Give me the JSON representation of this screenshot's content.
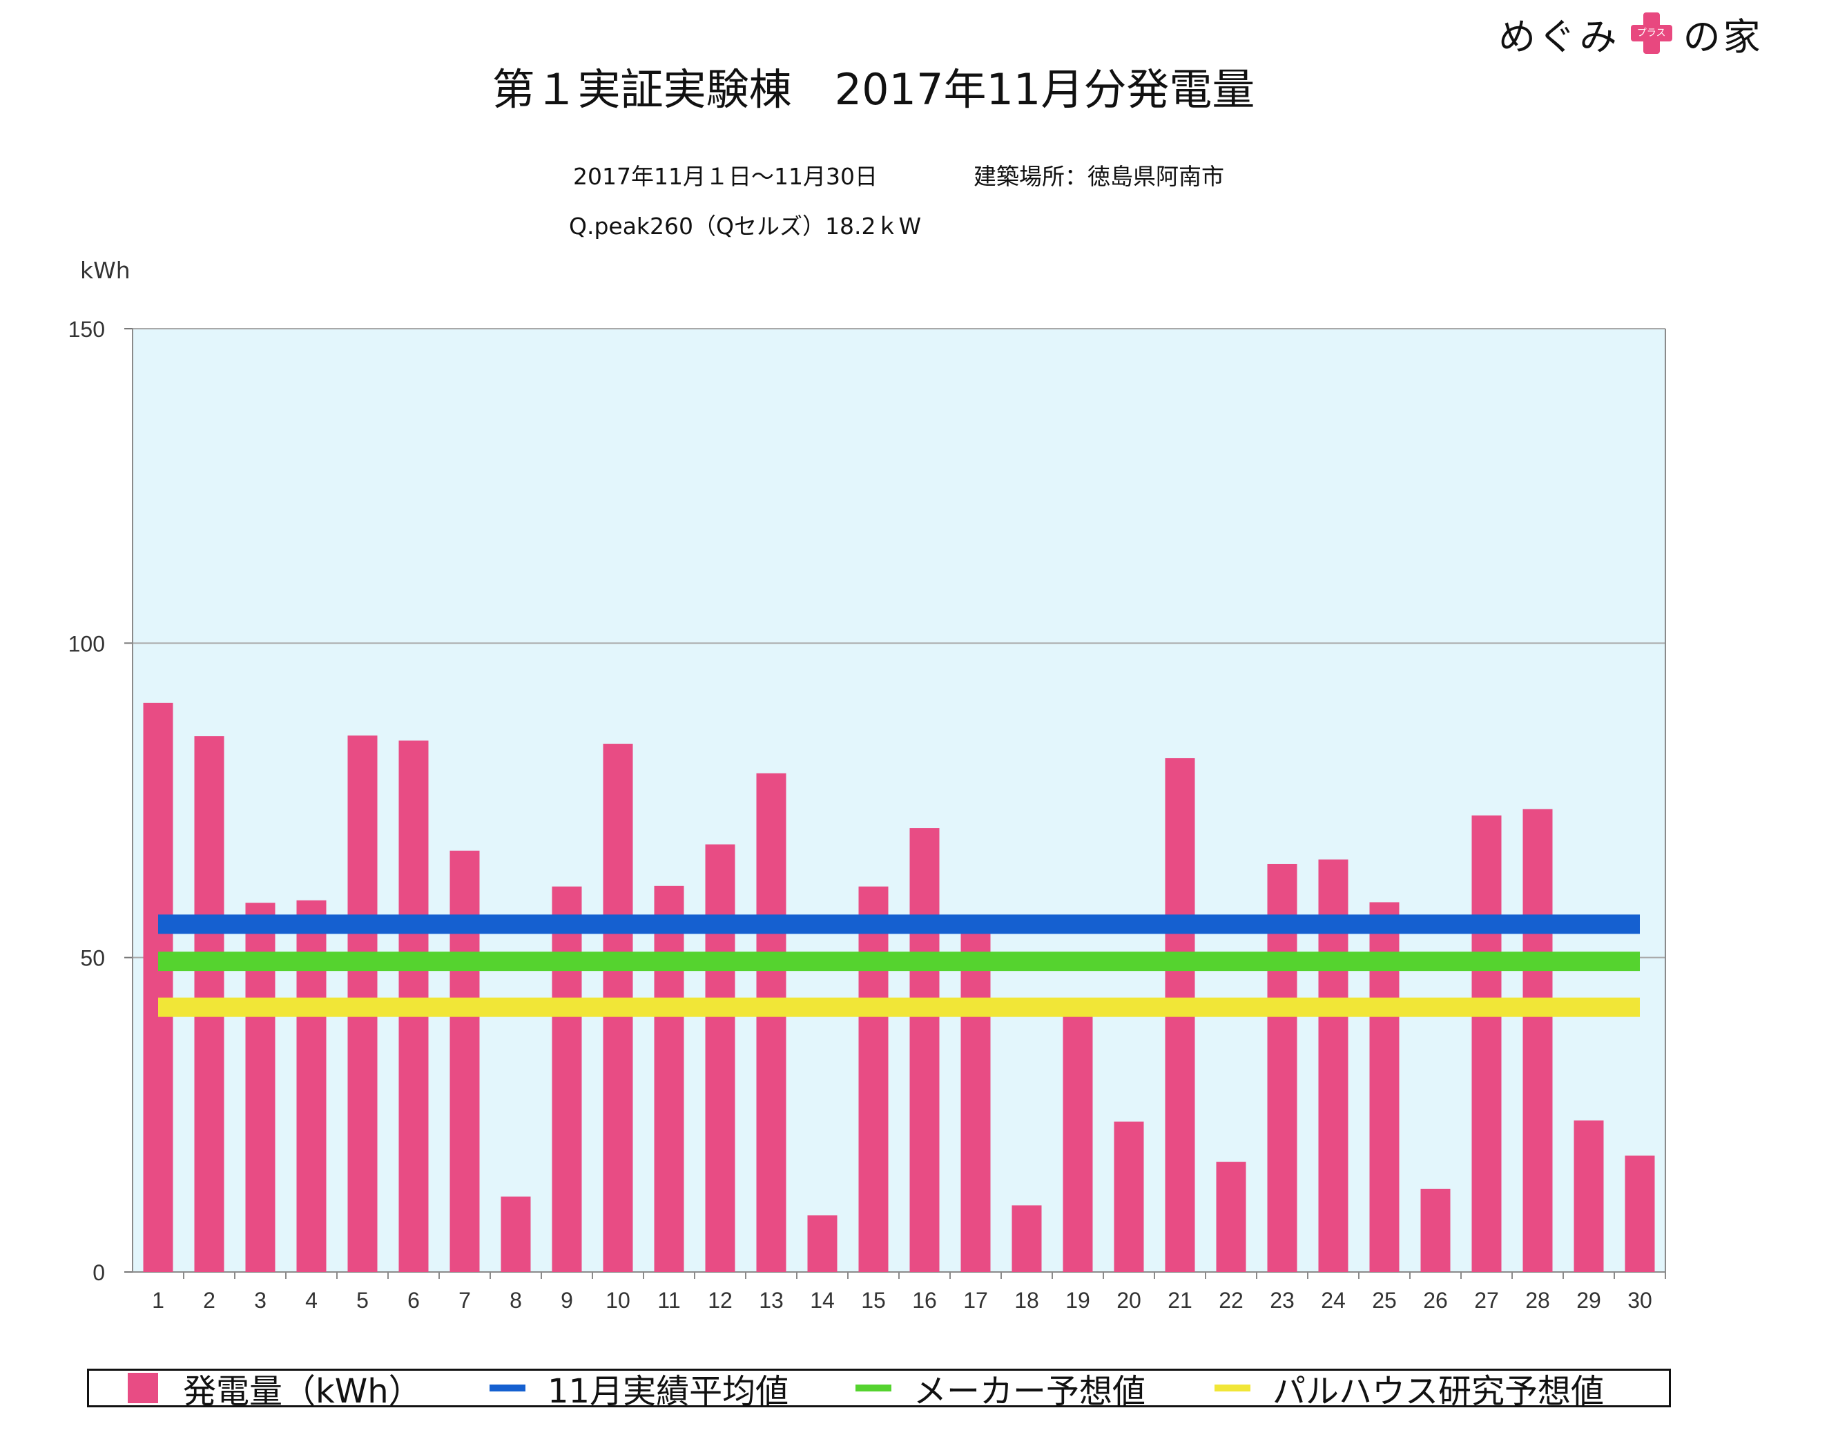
{
  "logo": {
    "left": "めぐみ",
    "plus_text": "プラス",
    "right": "の家"
  },
  "header": {
    "title": "第１実証実験棟　2017年11月分発電量",
    "period": "2017年11月１日〜11月30日",
    "location": "建築場所：徳島県阿南市",
    "panel": "Q.peak260（Qセルズ）18.2ｋW"
  },
  "colors": {
    "bar": "#e84c84",
    "avg": "#1560d0",
    "maker": "#55d32f",
    "palhouse": "#f1e637",
    "plot_bg": "#e3f6fc",
    "grid": "#a8a8a8"
  },
  "chart_data": {
    "type": "bar",
    "ylabel": "kWh",
    "ylim": [
      0,
      150
    ],
    "yticks": [
      0,
      50,
      100,
      150
    ],
    "grid": true,
    "legend_placement": "bottom",
    "categories": [
      "1",
      "2",
      "3",
      "4",
      "5",
      "6",
      "7",
      "8",
      "9",
      "10",
      "11",
      "12",
      "13",
      "14",
      "15",
      "16",
      "17",
      "18",
      "19",
      "20",
      "21",
      "22",
      "23",
      "24",
      "25",
      "26",
      "27",
      "28",
      "29",
      "30"
    ],
    "series": [
      {
        "name": "発電量（kWh）",
        "type": "bar",
        "values": [
          90.5,
          85.2,
          58.7,
          59.1,
          85.3,
          84.5,
          67.0,
          12.0,
          61.3,
          84.0,
          61.4,
          68.0,
          79.3,
          9.0,
          61.3,
          70.6,
          55.0,
          10.6,
          42.0,
          23.9,
          81.7,
          17.5,
          64.9,
          65.6,
          58.8,
          13.2,
          72.6,
          73.6,
          24.1,
          18.5
        ]
      },
      {
        "name": "11月実績平均値",
        "type": "line",
        "value": 55.3
      },
      {
        "name": "メーカー予想値",
        "type": "line",
        "value": 49.4
      },
      {
        "name": "パルハウス研究予想値",
        "type": "line",
        "value": 42.1
      }
    ]
  }
}
